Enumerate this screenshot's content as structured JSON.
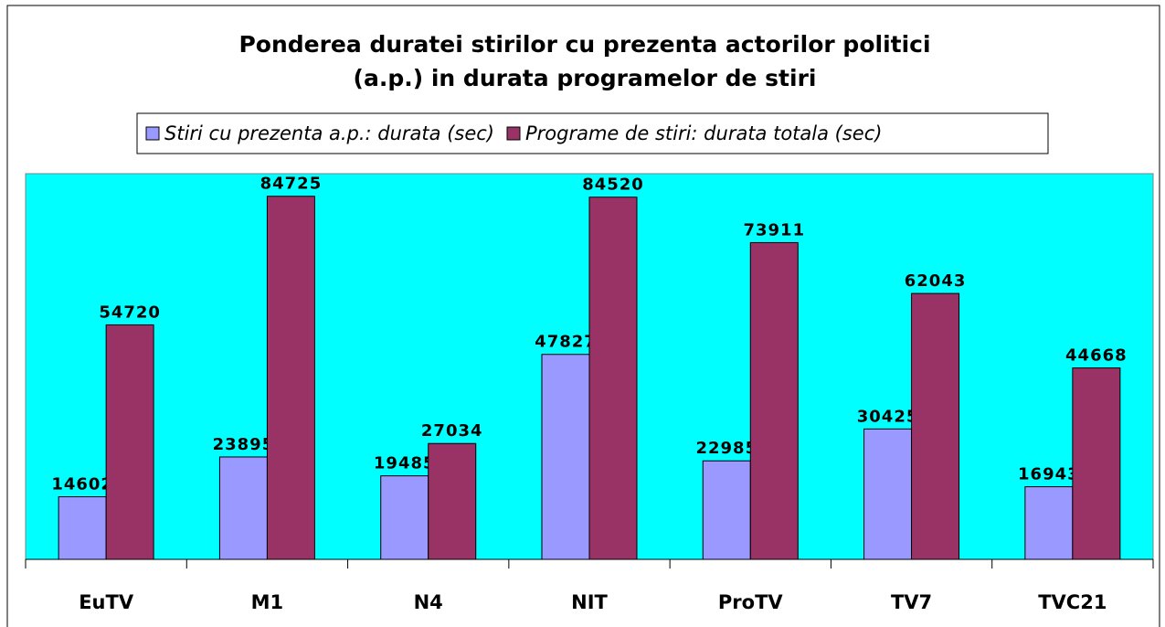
{
  "chart_data": {
    "type": "bar",
    "title": [
      "Ponderea duratei stirilor cu prezenta actorilor politici",
      "(a.p.) in durata programelor de stiri"
    ],
    "categories": [
      "EuTV",
      "M1",
      "N4",
      "NIT",
      "ProTV",
      "TV7",
      "TVC21"
    ],
    "series": [
      {
        "name": "Stiri cu prezenta a.p.: durata (sec)",
        "color": "#9999ff",
        "values": [
          14602,
          23895,
          19485,
          47827,
          22985,
          30425,
          16943
        ]
      },
      {
        "name": "Programe de stiri: durata totala (sec)",
        "color": "#993366",
        "values": [
          54720,
          84725,
          27034,
          84520,
          73911,
          62043,
          44668
        ]
      }
    ],
    "ylim": [
      0,
      90000
    ],
    "plot_background": "#00ffff",
    "legend": "top"
  }
}
